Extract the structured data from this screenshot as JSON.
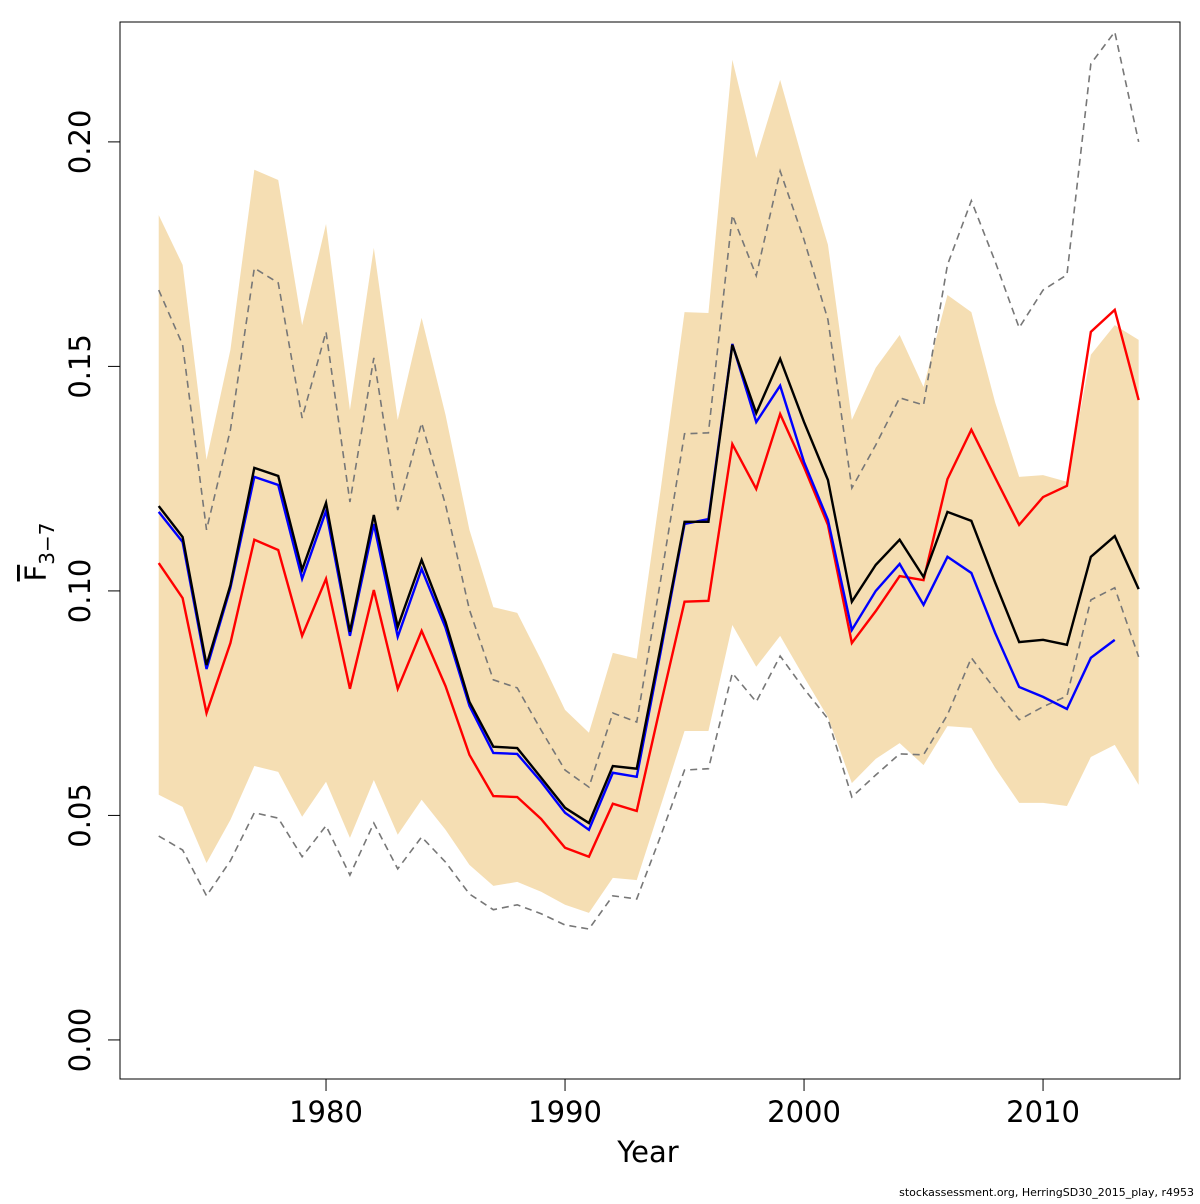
{
  "chart_data": {
    "type": "line",
    "xlabel": "Year",
    "ylabel": "F",
    "ylabel_subscript": "3−7",
    "footnote": "stockassessment.org, HerringSD30_2015_play, r4953",
    "x": [
      1973,
      1974,
      1975,
      1976,
      1977,
      1978,
      1979,
      1980,
      1981,
      1982,
      1983,
      1984,
      1985,
      1986,
      1987,
      1988,
      1989,
      1990,
      1991,
      1992,
      1993,
      1994,
      1995,
      1996,
      1997,
      1998,
      1999,
      2000,
      2001,
      2002,
      2003,
      2004,
      2005,
      2006,
      2007,
      2008,
      2009,
      2010,
      2011,
      2012,
      2013,
      2014
    ],
    "xlim": [
      1971.38,
      2015.73
    ],
    "ylim": [
      -0.0087,
      0.2267
    ],
    "xticks": [
      1980,
      1990,
      2000,
      2010
    ],
    "yticks": [
      {
        "value": 0,
        "label": "0.00"
      },
      {
        "value": 0.05,
        "label": "0.05"
      },
      {
        "value": 0.1,
        "label": "0.10"
      },
      {
        "value": 0.15,
        "label": "0.15"
      },
      {
        "value": 0.2,
        "label": "0.20"
      }
    ],
    "band": {
      "color": "#f5deb3",
      "upper": [
        0.1837,
        0.1726,
        0.1292,
        0.1537,
        0.1938,
        0.1915,
        0.1592,
        0.1817,
        0.1403,
        0.1764,
        0.1381,
        0.1608,
        0.1392,
        0.1136,
        0.0964,
        0.0951,
        0.0846,
        0.0735,
        0.0684,
        0.0862,
        0.0849,
        0.1225,
        0.1621,
        0.1619,
        0.2183,
        0.1964,
        0.2138,
        0.1949,
        0.1771,
        0.1381,
        0.1497,
        0.157,
        0.1454,
        0.1659,
        0.1621,
        0.1419,
        0.1254,
        0.1258,
        0.1243,
        0.1526,
        0.1592,
        0.1559
      ],
      "lower": [
        0.0546,
        0.0519,
        0.0394,
        0.049,
        0.061,
        0.0597,
        0.0497,
        0.0575,
        0.045,
        0.0579,
        0.0457,
        0.0535,
        0.0468,
        0.039,
        0.0343,
        0.0352,
        0.033,
        0.0301,
        0.0283,
        0.0361,
        0.0356,
        0.0521,
        0.0688,
        0.0688,
        0.0924,
        0.0831,
        0.09,
        0.0808,
        0.0719,
        0.0572,
        0.0626,
        0.0661,
        0.0612,
        0.0699,
        0.0695,
        0.0606,
        0.0528,
        0.0528,
        0.0521,
        0.063,
        0.0657,
        0.0568
      ]
    },
    "series": [
      {
        "color": "#777777",
        "dashed": true,
        "values": [
          0.167,
          0.1548,
          0.1136,
          0.1359,
          0.1719,
          0.1686,
          0.1385,
          0.1577,
          0.1198,
          0.1519,
          0.118,
          0.1374,
          0.1192,
          0.0958,
          0.0802,
          0.0784,
          0.069,
          0.0601,
          0.0563,
          0.0728,
          0.0708,
          0.1024,
          0.135,
          0.1352,
          0.1837,
          0.1702,
          0.1935,
          0.1782,
          0.1604,
          0.1229,
          0.1325,
          0.143,
          0.1414,
          0.1726,
          0.1869,
          0.1733,
          0.1586,
          0.167,
          0.1704,
          0.2174,
          0.2245,
          0.2
        ]
      },
      {
        "color": "#777777",
        "dashed": true,
        "values": [
          0.0454,
          0.0423,
          0.0321,
          0.0399,
          0.0506,
          0.0494,
          0.0408,
          0.0477,
          0.0367,
          0.0483,
          0.0381,
          0.0452,
          0.0396,
          0.0325,
          0.029,
          0.0301,
          0.0281,
          0.0256,
          0.0247,
          0.0321,
          0.0314,
          0.0454,
          0.0601,
          0.0604,
          0.0817,
          0.0753,
          0.0855,
          0.0782,
          0.0715,
          0.0541,
          0.059,
          0.0637,
          0.0635,
          0.0724,
          0.0851,
          0.078,
          0.0713,
          0.0742,
          0.0766,
          0.098,
          0.1007,
          0.0853
        ]
      },
      {
        "color": "#ff0000",
        "dashed": false,
        "values": [
          0.1062,
          0.0984,
          0.0728,
          0.0884,
          0.1114,
          0.1091,
          0.09,
          0.1027,
          0.0782,
          0.1002,
          0.0782,
          0.0911,
          0.0788,
          0.0635,
          0.0543,
          0.0541,
          0.0492,
          0.0428,
          0.0408,
          0.0526,
          0.051,
          0.0746,
          0.0976,
          0.0978,
          0.1327,
          0.1227,
          0.1394,
          0.1276,
          0.1147,
          0.0884,
          0.0955,
          0.1033,
          0.1024,
          0.1249,
          0.1359,
          0.1252,
          0.1147,
          0.1209,
          0.1234,
          0.1577,
          0.1626,
          0.1425
        ]
      },
      {
        "color": "#0000ff",
        "dashed": false,
        "values": [
          0.1176,
          0.1109,
          0.0826,
          0.1007,
          0.1254,
          0.1236,
          0.1027,
          0.1178,
          0.09,
          0.1149,
          0.0898,
          0.1049,
          0.0918,
          0.0744,
          0.0639,
          0.0637,
          0.0575,
          0.0506,
          0.0468,
          0.0595,
          0.0586,
          0.0864,
          0.1149,
          0.116,
          0.155,
          0.1376,
          0.1457,
          0.1287,
          0.1158,
          0.0913,
          0.1,
          0.106,
          0.0969,
          0.1076,
          0.104,
          0.0906,
          0.0786,
          0.0764,
          0.0737,
          0.0851,
          0.0891,
          null
        ]
      },
      {
        "color": "#000000",
        "dashed": false,
        "values": [
          0.1189,
          0.112,
          0.0835,
          0.1013,
          0.1274,
          0.1256,
          0.1047,
          0.1196,
          0.0909,
          0.1169,
          0.092,
          0.1069,
          0.0931,
          0.0753,
          0.0653,
          0.065,
          0.0584,
          0.0517,
          0.0483,
          0.061,
          0.0604,
          0.0875,
          0.1154,
          0.1154,
          0.1548,
          0.1396,
          0.1517,
          0.1376,
          0.1247,
          0.0976,
          0.1058,
          0.1114,
          0.1031,
          0.1176,
          0.1156,
          0.1018,
          0.0886,
          0.0891,
          0.088,
          0.1076,
          0.1122,
          0.1004
        ]
      }
    ]
  }
}
